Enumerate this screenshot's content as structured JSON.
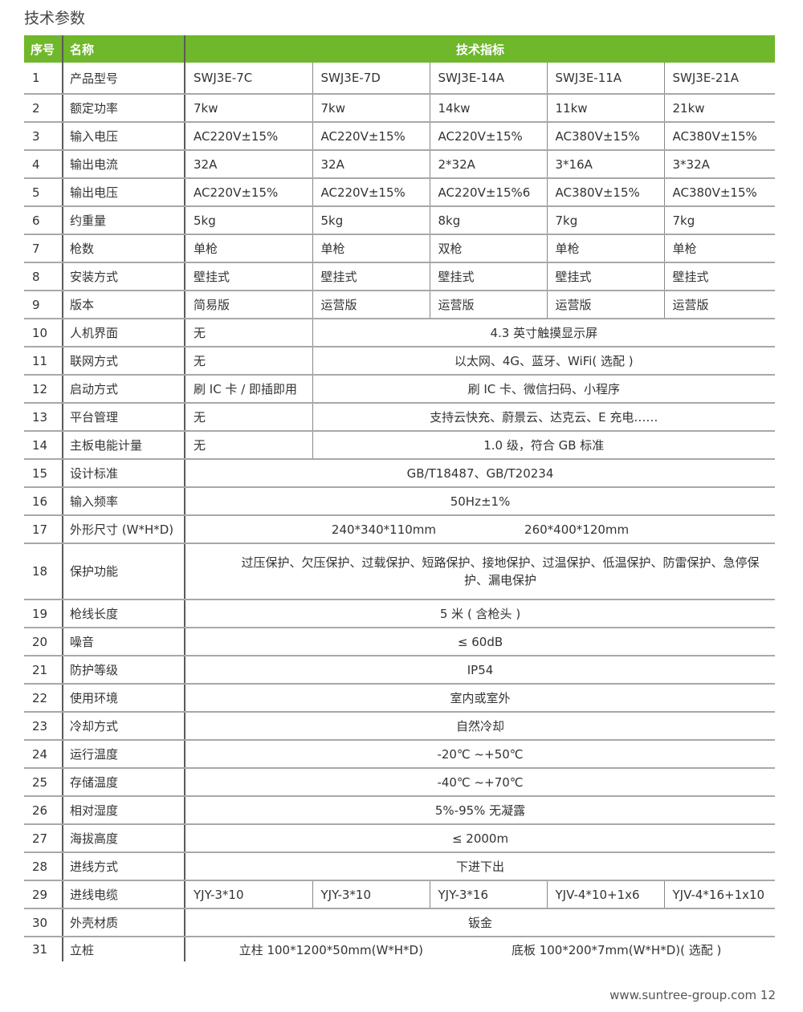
{
  "title": "技术参数",
  "header": {
    "no": "序号",
    "name": "名称",
    "spec": "技术指标"
  },
  "rows": [
    {
      "no": "1",
      "name": "产品型号",
      "cells": [
        "SWJ3E-7C",
        "SWJ3E-7D",
        "SWJ3E-14A",
        "SWJ3E-11A",
        "SWJ3E-21A"
      ]
    },
    {
      "no": "2",
      "name": "额定功率",
      "cells": [
        "7kw",
        "7kw",
        "14kw",
        "11kw",
        "21kw"
      ]
    },
    {
      "no": "3",
      "name": "输入电压",
      "cells": [
        "AC220V±15%",
        "AC220V±15%",
        "AC220V±15%",
        "AC380V±15%",
        "AC380V±15%"
      ]
    },
    {
      "no": "4",
      "name": "输出电流",
      "cells": [
        "32A",
        "32A",
        "2*32A",
        "3*16A",
        "3*32A"
      ]
    },
    {
      "no": "5",
      "name": "输出电压",
      "cells": [
        "AC220V±15%",
        "AC220V±15%",
        "AC220V±15%6",
        "AC380V±15%",
        "AC380V±15%"
      ]
    },
    {
      "no": "6",
      "name": "约重量",
      "cells": [
        "5kg",
        "5kg",
        "8kg",
        "7kg",
        "7kg"
      ]
    },
    {
      "no": "7",
      "name": "枪数",
      "cells": [
        "单枪",
        "单枪",
        "双枪",
        "单枪",
        "单枪"
      ]
    },
    {
      "no": "8",
      "name": "安装方式",
      "cells": [
        "壁挂式",
        "壁挂式",
        "壁挂式",
        "壁挂式",
        "壁挂式"
      ]
    },
    {
      "no": "9",
      "name": "版本",
      "cells": [
        "简易版",
        "运营版",
        "运营版",
        "运营版",
        "运营版"
      ]
    },
    {
      "no": "10",
      "name": "人机界面",
      "cells": [
        "无",
        "4.3 英寸触摸显示屏"
      ],
      "split": true
    },
    {
      "no": "11",
      "name": "联网方式",
      "cells": [
        "无",
        "以太网、4G、蓝牙、WiFi( 选配 )"
      ],
      "split": true
    },
    {
      "no": "12",
      "name": "启动方式",
      "cells": [
        "刷 IC 卡 / 即插即用",
        "刷 IC 卡、微信扫码、小程序"
      ],
      "split": true
    },
    {
      "no": "13",
      "name": "平台管理",
      "cells": [
        "无",
        "支持云快充、蔚景云、达克云、E 充电……"
      ],
      "split": true
    },
    {
      "no": "14",
      "name": "主板电能计量",
      "cells": [
        "无",
        "1.0 级，符合 GB 标准"
      ],
      "split": true
    },
    {
      "no": "15",
      "name": "设计标准",
      "cells": [
        "GB/T18487、GB/T20234"
      ]
    },
    {
      "no": "16",
      "name": "输入频率",
      "cells": [
        "50Hz±1%"
      ]
    },
    {
      "no": "17",
      "name": "外形尺寸 (W*H*D)",
      "cells": [
        "240*340*110mm",
        "260*400*120mm"
      ],
      "pair": true
    },
    {
      "no": "18",
      "name": "保护功能",
      "cells": [
        "过压保护、欠压保护、过载保护、短路保护、接地保护、过温保护、低温保护、防雷保护、急停保护、漏电保护"
      ],
      "tall": true
    },
    {
      "no": "19",
      "name": "枪线长度",
      "cells": [
        "5 米 ( 含枪头 )"
      ]
    },
    {
      "no": "20",
      "name": "噪音",
      "cells": [
        "≤ 60dB"
      ]
    },
    {
      "no": "21",
      "name": "防护等级",
      "cells": [
        "IP54"
      ]
    },
    {
      "no": "22",
      "name": "使用环境",
      "cells": [
        "室内或室外"
      ]
    },
    {
      "no": "23",
      "name": "冷却方式",
      "cells": [
        "自然冷却"
      ]
    },
    {
      "no": "24",
      "name": "运行温度",
      "cells": [
        "-20℃ ~+50℃"
      ]
    },
    {
      "no": "25",
      "name": "存储温度",
      "cells": [
        "-40℃ ~+70℃"
      ]
    },
    {
      "no": "26",
      "name": "相对湿度",
      "cells": [
        "5%-95% 无凝露"
      ]
    },
    {
      "no": "27",
      "name": "海拔高度",
      "cells": [
        "≤ 2000m"
      ]
    },
    {
      "no": "28",
      "name": "进线方式",
      "cells": [
        "下进下出"
      ]
    },
    {
      "no": "29",
      "name": "进线电缆",
      "cells": [
        "YJY-3*10",
        "YJY-3*10",
        "YJY-3*16",
        "YJV-4*10+1x6",
        "YJV-4*16+1x10"
      ]
    },
    {
      "no": "30",
      "name": "外壳材质",
      "cells": [
        "钣金"
      ]
    },
    {
      "no": "31",
      "name": "立桩",
      "cells": [
        "立柱 100*1200*50mm(W*H*D)",
        "底板 100*200*7mm(W*H*D)( 选配 )"
      ],
      "pair": true
    }
  ],
  "footer": "www.suntree-group.com 12",
  "colors": {
    "header_bg": "#6fb72b",
    "header_text": "#ffffff",
    "text": "#333333"
  }
}
